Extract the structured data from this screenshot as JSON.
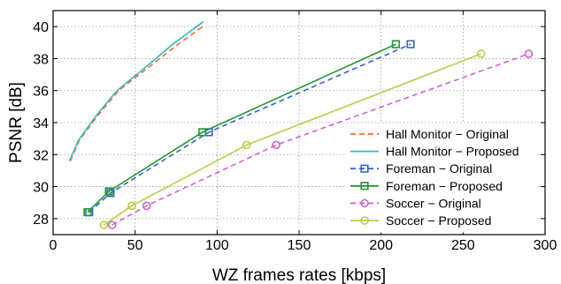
{
  "chart_data": {
    "type": "line",
    "title": "",
    "xlabel": "WZ frames rates [kbps]",
    "ylabel": "PSNR [dB]",
    "xlim": [
      0,
      300
    ],
    "ylim": [
      27,
      41
    ],
    "xticks": [
      0,
      50,
      100,
      150,
      200,
      250,
      300
    ],
    "yticks": [
      28,
      30,
      32,
      34,
      36,
      38,
      40
    ],
    "grid": true,
    "legend_position": "lower-right",
    "series": [
      {
        "name": "Hall Monitor − Original",
        "color": "#ff6633",
        "dash": "dashed",
        "marker": "none",
        "x": [
          10.5,
          16,
          27,
          40,
          60,
          75,
          92.5
        ],
        "y": [
          31.6,
          32.9,
          34.4,
          36.0,
          37.6,
          38.8,
          40.1
        ]
      },
      {
        "name": "Hall Monitor − Proposed",
        "color": "#33bbbb",
        "dash": "solid",
        "marker": "none",
        "x": [
          10,
          15.5,
          26,
          39,
          58,
          73,
          91.5
        ],
        "y": [
          31.6,
          32.9,
          34.4,
          36.0,
          37.6,
          38.9,
          40.3
        ]
      },
      {
        "name": "Foreman − Original",
        "color": "#3366cc",
        "dash": "dashed",
        "marker": "square",
        "x": [
          22,
          35,
          95,
          218
        ],
        "y": [
          28.4,
          29.6,
          33.4,
          38.9
        ]
      },
      {
        "name": "Foreman − Proposed",
        "color": "#229933",
        "dash": "solid",
        "marker": "square",
        "x": [
          21,
          34,
          91,
          209
        ],
        "y": [
          28.4,
          29.7,
          33.4,
          38.9
        ]
      },
      {
        "name": "Soccer − Original",
        "color": "#cc66cc",
        "dash": "dashed",
        "marker": "circle",
        "x": [
          36,
          57,
          136,
          290
        ],
        "y": [
          27.6,
          28.8,
          32.6,
          38.3
        ]
      },
      {
        "name": "Soccer − Proposed",
        "color": "#bbcc44",
        "dash": "solid",
        "marker": "circle",
        "x": [
          31,
          48,
          118,
          261
        ],
        "y": [
          27.6,
          28.8,
          32.6,
          38.3
        ]
      }
    ]
  }
}
